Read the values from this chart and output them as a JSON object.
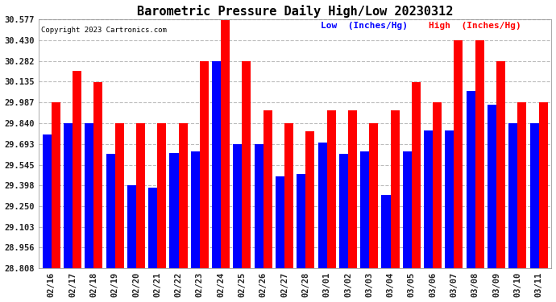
{
  "title": "Barometric Pressure Daily High/Low 20230312",
  "copyright": "Copyright 2023 Cartronics.com",
  "legend_low": "Low  (Inches/Hg)",
  "legend_high": "High  (Inches/Hg)",
  "dates": [
    "02/16",
    "02/17",
    "02/18",
    "02/19",
    "02/20",
    "02/21",
    "02/22",
    "02/23",
    "02/24",
    "02/25",
    "02/26",
    "02/27",
    "02/28",
    "03/01",
    "03/02",
    "03/03",
    "03/04",
    "03/05",
    "03/06",
    "03/07",
    "03/08",
    "03/09",
    "03/10",
    "03/11"
  ],
  "low": [
    29.76,
    29.84,
    29.84,
    29.62,
    29.4,
    29.38,
    29.63,
    29.64,
    30.28,
    29.69,
    29.69,
    29.46,
    29.48,
    29.7,
    29.62,
    29.64,
    29.33,
    29.64,
    29.79,
    29.79,
    30.07,
    29.97,
    29.84,
    29.84
  ],
  "high": [
    29.99,
    30.21,
    30.13,
    29.84,
    29.84,
    29.84,
    29.84,
    30.28,
    30.57,
    30.28,
    29.93,
    29.84,
    29.78,
    29.93,
    29.93,
    29.84,
    29.93,
    30.13,
    29.99,
    30.43,
    30.43,
    30.28,
    29.99,
    29.99
  ],
  "ymin": 28.808,
  "ymax": 30.577,
  "yticks": [
    28.808,
    28.956,
    29.103,
    29.25,
    29.398,
    29.545,
    29.693,
    29.84,
    29.987,
    30.135,
    30.282,
    30.43,
    30.577
  ],
  "bar_color_low": "#0000ff",
  "bar_color_high": "#ff0000",
  "background_color": "#ffffff",
  "grid_color": "#bbbbbb",
  "title_fontsize": 11,
  "tick_fontsize": 7.5,
  "legend_fontsize": 8
}
